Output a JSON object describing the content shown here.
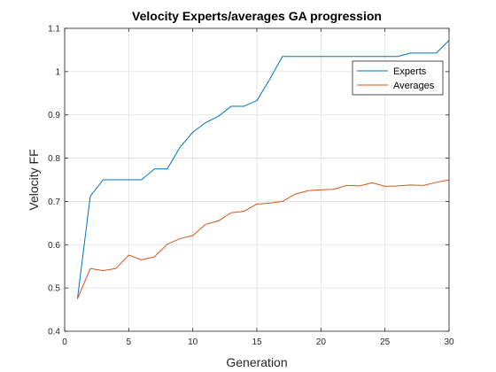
{
  "chart_data": {
    "type": "line",
    "title": "Velocity Experts/averages GA progression",
    "xlabel": "Generation",
    "ylabel": "Velocity FF",
    "xlim": [
      0,
      30
    ],
    "ylim": [
      0.4,
      1.1
    ],
    "xticks": [
      0,
      5,
      10,
      15,
      20,
      25,
      30
    ],
    "yticks": [
      0.4,
      0.5,
      0.6,
      0.7,
      0.8,
      0.9,
      1,
      1.1
    ],
    "xtick_labels": [
      "0",
      "5",
      "10",
      "15",
      "20",
      "25",
      "30"
    ],
    "ytick_labels": [
      "0.4",
      "0.5",
      "0.6",
      "0.7",
      "0.8",
      "0.9",
      "1",
      "1.1"
    ],
    "grid": true,
    "legend_position": "top-right",
    "x": [
      1,
      2,
      3,
      4,
      5,
      6,
      7,
      8,
      9,
      10,
      11,
      12,
      13,
      14,
      15,
      16,
      17,
      18,
      19,
      20,
      21,
      22,
      23,
      24,
      25,
      26,
      27,
      28,
      29,
      30
    ],
    "series": [
      {
        "name": "Experts",
        "color": "#0072bd",
        "values": [
          0.475,
          0.712,
          0.75,
          0.75,
          0.75,
          0.75,
          0.775,
          0.775,
          0.825,
          0.86,
          0.882,
          0.897,
          0.92,
          0.92,
          0.933,
          0.982,
          1.035,
          1.035,
          1.035,
          1.035,
          1.035,
          1.035,
          1.035,
          1.035,
          1.035,
          1.035,
          1.043,
          1.043,
          1.043,
          1.072
        ]
      },
      {
        "name": "Averages",
        "color": "#d95319",
        "values": [
          0.475,
          0.545,
          0.54,
          0.545,
          0.576,
          0.565,
          0.572,
          0.601,
          0.614,
          0.621,
          0.647,
          0.655,
          0.674,
          0.677,
          0.694,
          0.696,
          0.7,
          0.717,
          0.725,
          0.727,
          0.728,
          0.737,
          0.736,
          0.743,
          0.735,
          0.736,
          0.738,
          0.737,
          0.744,
          0.75
        ]
      }
    ]
  }
}
